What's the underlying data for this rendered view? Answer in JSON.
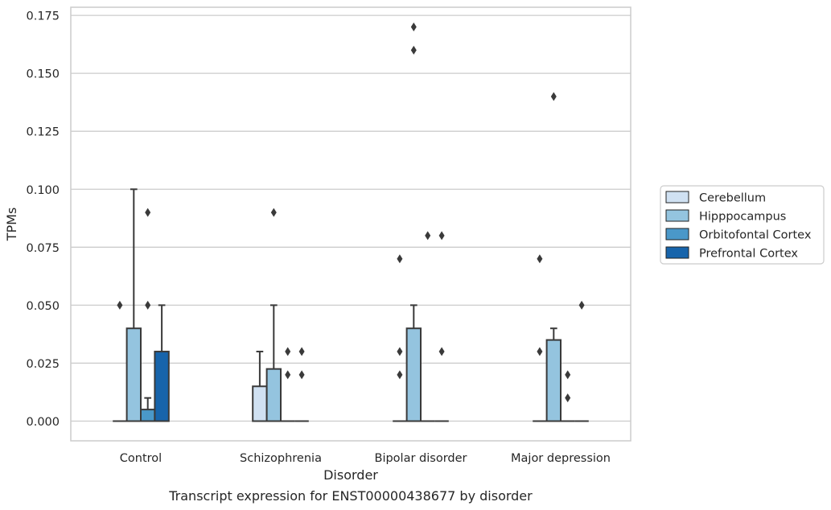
{
  "chart_data": {
    "type": "box",
    "title": "Transcript expression for ENST00000438677 by disorder",
    "xlabel": "Disorder",
    "ylabel": "TPMs",
    "ylim": [
      -0.0085,
      0.1785
    ],
    "yticks": [
      0.0,
      0.025,
      0.05,
      0.075,
      0.1,
      0.125,
      0.15,
      0.175
    ],
    "ytick_labels": [
      "0.000",
      "0.025",
      "0.050",
      "0.075",
      "0.100",
      "0.125",
      "0.150",
      "0.175"
    ],
    "categories": [
      "Control",
      "Schizophrenia",
      "Bipolar disorder",
      "Major depression"
    ],
    "grid": "horizontal",
    "legend_position": "right",
    "series": [
      {
        "name": "Cerebellum",
        "color": "#d0e1f2",
        "boxes": [
          {
            "q1": 0.0,
            "median": 0.0,
            "q3": 0.0,
            "whislo": 0.0,
            "whishi": 0.0,
            "fliers": [
              0.05
            ]
          },
          {
            "q1": 0.0,
            "median": 0.0,
            "q3": 0.015,
            "whislo": 0.0,
            "whishi": 0.03,
            "fliers": []
          },
          {
            "q1": 0.0,
            "median": 0.0,
            "q3": 0.0,
            "whislo": 0.0,
            "whishi": 0.0,
            "fliers": [
              0.02,
              0.03,
              0.07
            ]
          },
          {
            "q1": 0.0,
            "median": 0.0,
            "q3": 0.0,
            "whislo": 0.0,
            "whishi": 0.0,
            "fliers": [
              0.03,
              0.07
            ]
          }
        ]
      },
      {
        "name": "Hipppocampus",
        "color": "#94c4df",
        "boxes": [
          {
            "q1": 0.0,
            "median": 0.0,
            "q3": 0.04,
            "whislo": 0.0,
            "whishi": 0.1,
            "fliers": []
          },
          {
            "q1": 0.0,
            "median": 0.0,
            "q3": 0.0225,
            "whislo": 0.0,
            "whishi": 0.05,
            "fliers": [
              0.09
            ]
          },
          {
            "q1": 0.0,
            "median": 0.0,
            "q3": 0.04,
            "whislo": 0.0,
            "whishi": 0.05,
            "fliers": [
              0.16,
              0.17
            ]
          },
          {
            "q1": 0.0,
            "median": 0.0,
            "q3": 0.035,
            "whislo": 0.0,
            "whishi": 0.04,
            "fliers": [
              0.14
            ]
          }
        ]
      },
      {
        "name": "Orbitofontal Cortex",
        "color": "#4a98c9",
        "boxes": [
          {
            "q1": 0.0,
            "median": 0.0,
            "q3": 0.005,
            "whislo": 0.0,
            "whishi": 0.01,
            "fliers": [
              0.05,
              0.09
            ]
          },
          {
            "q1": 0.0,
            "median": 0.0,
            "q3": 0.0,
            "whislo": 0.0,
            "whishi": 0.0,
            "fliers": [
              0.02,
              0.03
            ]
          },
          {
            "q1": 0.0,
            "median": 0.0,
            "q3": 0.0,
            "whislo": 0.0,
            "whishi": 0.0,
            "fliers": [
              0.08
            ]
          },
          {
            "q1": 0.0,
            "median": 0.0,
            "q3": 0.0,
            "whislo": 0.0,
            "whishi": 0.0,
            "fliers": [
              0.01,
              0.02
            ]
          }
        ]
      },
      {
        "name": "Prefrontal Cortex",
        "color": "#1764ab",
        "boxes": [
          {
            "q1": 0.0,
            "median": 0.0,
            "q3": 0.03,
            "whislo": 0.0,
            "whishi": 0.05,
            "fliers": []
          },
          {
            "q1": 0.0,
            "median": 0.0,
            "q3": 0.0,
            "whislo": 0.0,
            "whishi": 0.0,
            "fliers": [
              0.02,
              0.03
            ]
          },
          {
            "q1": 0.0,
            "median": 0.0,
            "q3": 0.0,
            "whislo": 0.0,
            "whishi": 0.0,
            "fliers": [
              0.03,
              0.08
            ]
          },
          {
            "q1": 0.0,
            "median": 0.0,
            "q3": 0.0,
            "whislo": 0.0,
            "whishi": 0.0,
            "fliers": [
              0.05
            ]
          }
        ]
      }
    ]
  }
}
